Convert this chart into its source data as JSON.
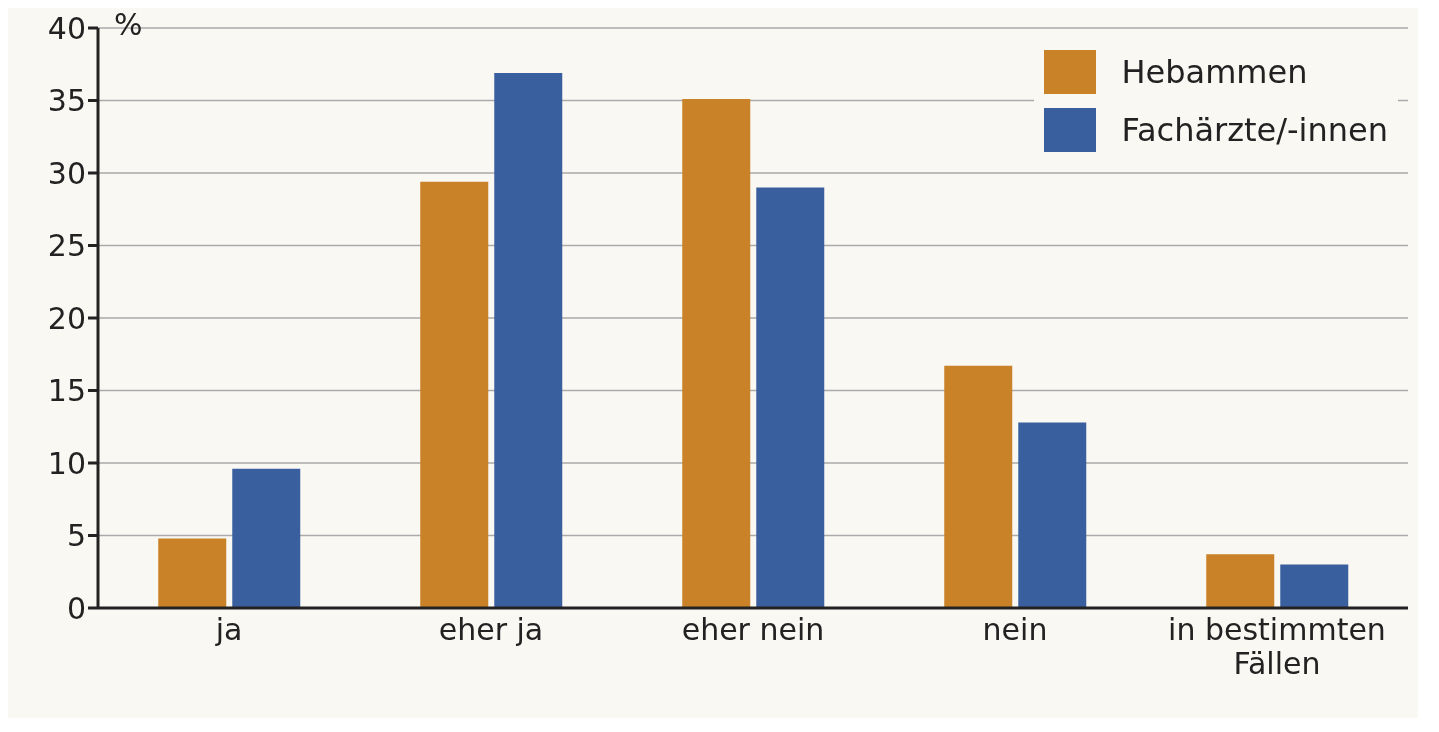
{
  "chart_data": {
    "type": "bar",
    "ylabel": "%",
    "categories": [
      "ja",
      "eher ja",
      "eher nein",
      "nein",
      "in bestimmten Fällen"
    ],
    "series": [
      {
        "name": "Hebammen",
        "color": "#c98227",
        "values": [
          4.8,
          29.4,
          35.1,
          16.7,
          3.7
        ]
      },
      {
        "name": "Fachärzte/-innen",
        "color": "#3a5f9f",
        "values": [
          9.6,
          36.9,
          29.0,
          12.8,
          3.0
        ]
      }
    ],
    "ylim": [
      0,
      40
    ],
    "yticks": [
      0,
      5,
      10,
      15,
      20,
      25,
      30,
      35,
      40
    ],
    "grid": "y",
    "legend": "top right"
  }
}
